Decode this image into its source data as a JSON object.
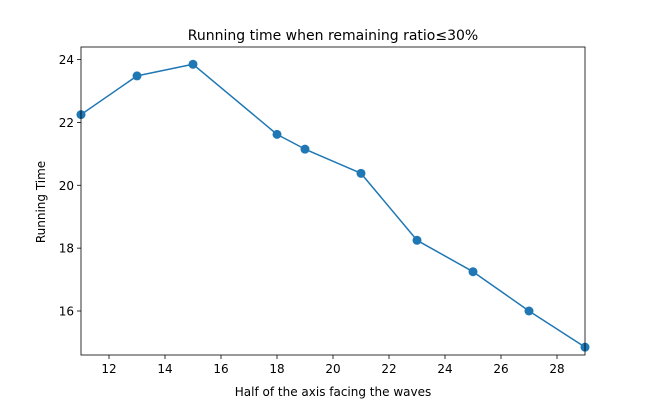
{
  "chart_data": {
    "type": "line",
    "title": "Running time when remaining ratio≤30%",
    "xlabel": "Half of the axis facing the waves",
    "ylabel": "Running Time",
    "xlim": [
      11,
      29
    ],
    "ylim": [
      14.6,
      24.4
    ],
    "xticks": [
      12,
      14,
      16,
      18,
      20,
      22,
      24,
      26,
      28
    ],
    "yticks": [
      16,
      18,
      20,
      22,
      24
    ],
    "grid": false,
    "series": [
      {
        "color": "#1f77b4",
        "marker": "circle",
        "points": [
          {
            "x": 11,
            "y": 22.25
          },
          {
            "x": 13,
            "y": 23.48
          },
          {
            "x": 15,
            "y": 23.85
          },
          {
            "x": 18,
            "y": 21.62
          },
          {
            "x": 19,
            "y": 21.15
          },
          {
            "x": 21,
            "y": 20.38
          },
          {
            "x": 23,
            "y": 18.25
          },
          {
            "x": 25,
            "y": 17.25
          },
          {
            "x": 27,
            "y": 16.0
          },
          {
            "x": 29,
            "y": 14.85
          }
        ]
      }
    ]
  }
}
